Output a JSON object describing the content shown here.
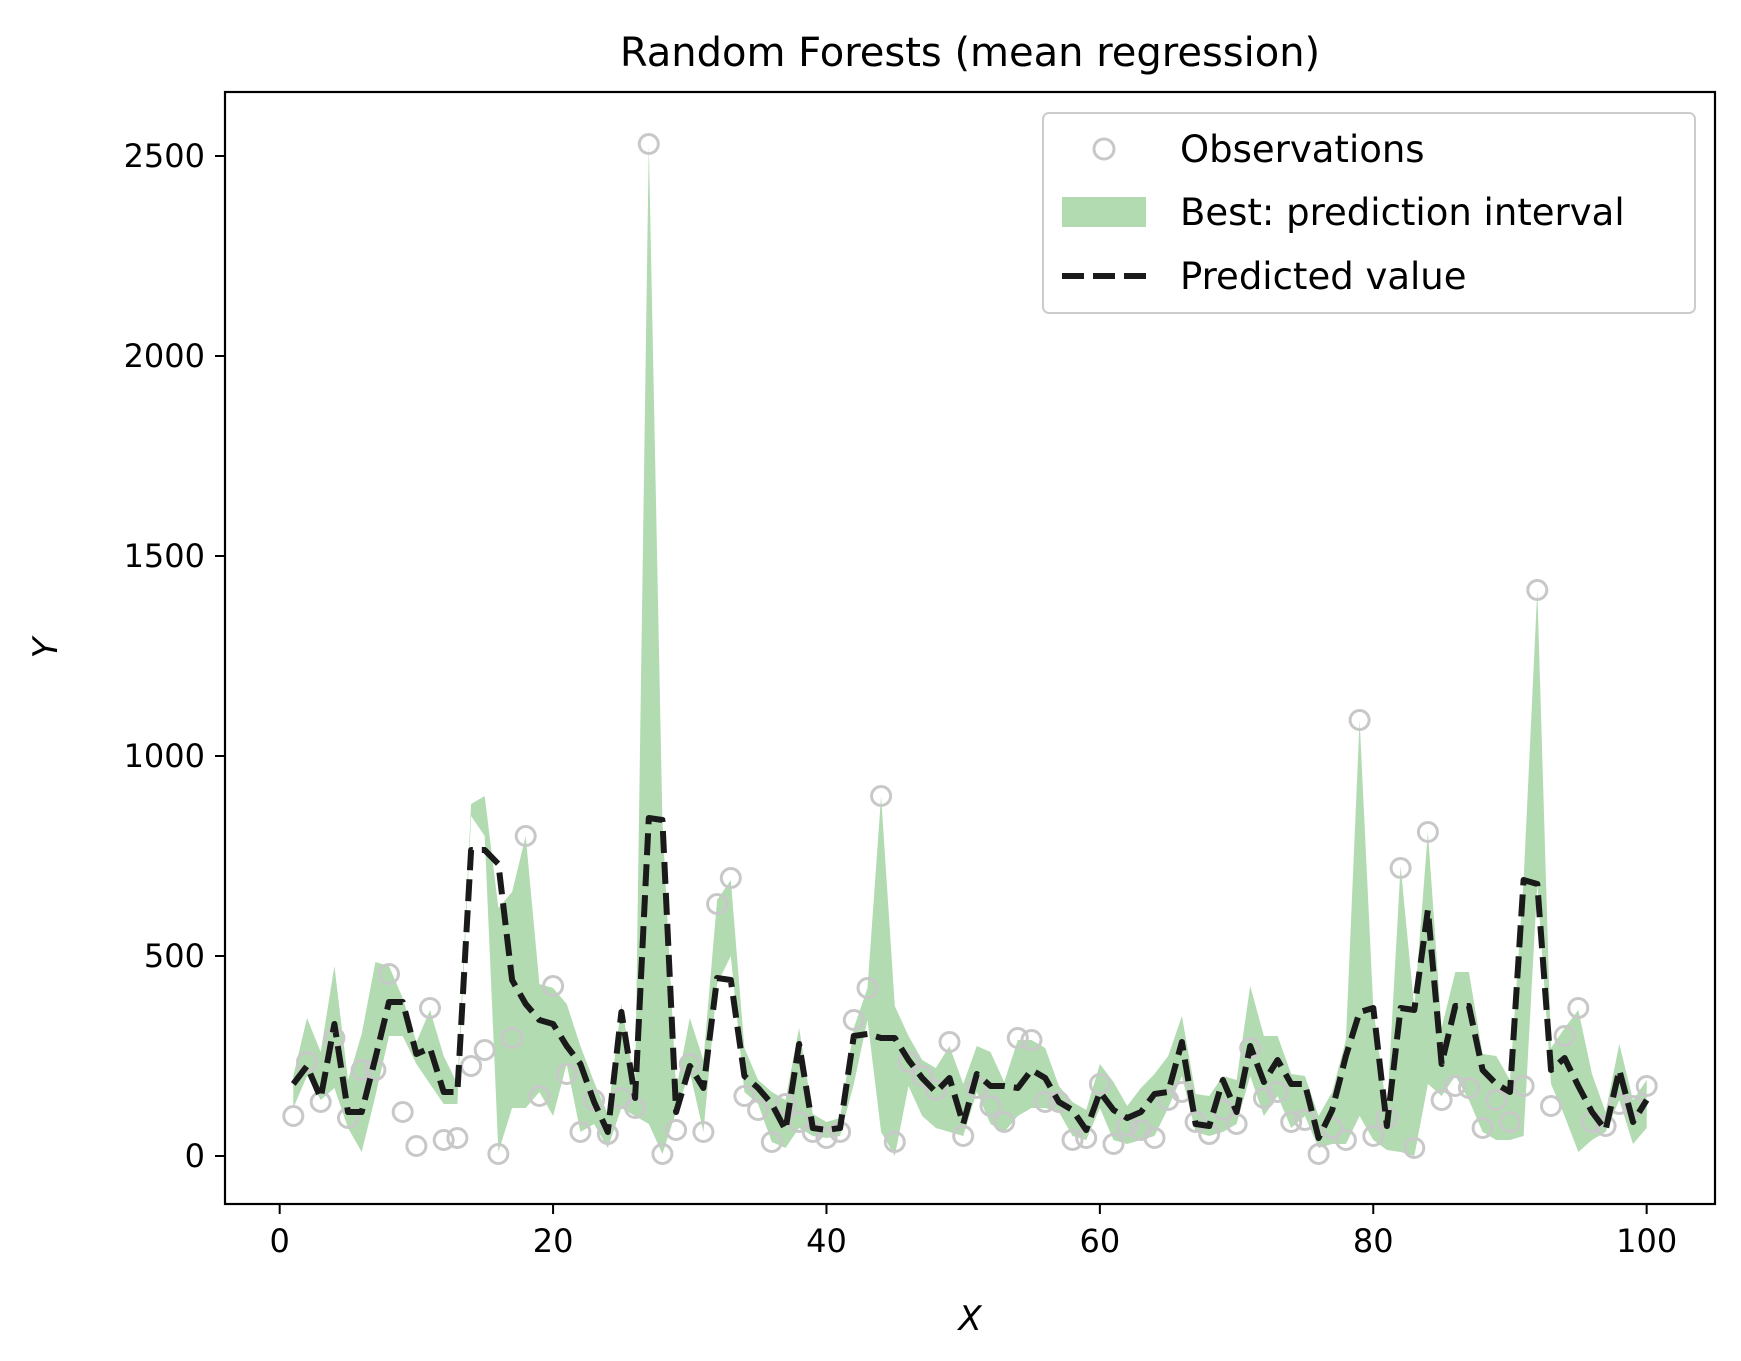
{
  "chart_data": {
    "type": "line",
    "title": "Random Forests (mean regression)",
    "xlabel": "X",
    "ylabel": "Y",
    "xlim": [
      -4,
      105
    ],
    "ylim": [
      -120,
      2660
    ],
    "xticks": [
      0,
      20,
      40,
      60,
      80,
      100
    ],
    "yticks": [
      0,
      500,
      1000,
      1500,
      2000,
      2500
    ],
    "grid": false,
    "legend_position": "top-right",
    "colors": {
      "observations": "#c8c8c8",
      "interval": "#b2dbb2",
      "prediction": "#1a1a1a",
      "frame": "#000000"
    },
    "legend": [
      {
        "key": "observations",
        "label": "Observations"
      },
      {
        "key": "interval",
        "label": "Best: prediction interval"
      },
      {
        "key": "prediction",
        "label": "Predicted value"
      }
    ],
    "x": [
      1,
      2,
      3,
      4,
      5,
      6,
      7,
      8,
      9,
      10,
      11,
      12,
      13,
      14,
      15,
      16,
      17,
      18,
      19,
      20,
      21,
      22,
      23,
      24,
      25,
      26,
      27,
      28,
      29,
      30,
      31,
      32,
      33,
      34,
      35,
      36,
      37,
      38,
      39,
      40,
      41,
      42,
      43,
      44,
      45,
      46,
      47,
      48,
      49,
      50,
      51,
      52,
      53,
      54,
      55,
      56,
      57,
      58,
      59,
      60,
      61,
      62,
      63,
      64,
      65,
      66,
      67,
      68,
      69,
      70,
      71,
      72,
      73,
      74,
      75,
      76,
      77,
      78,
      79,
      80,
      81,
      82,
      83,
      84,
      85,
      86,
      87,
      88,
      89,
      90,
      91,
      92,
      93,
      94,
      95,
      96,
      97,
      98,
      99,
      100
    ],
    "series": [
      {
        "key": "observations",
        "name": "Observations",
        "values": [
          100,
          235,
          135,
          295,
          95,
          215,
          215,
          455,
          110,
          25,
          370,
          40,
          45,
          225,
          265,
          5,
          295,
          800,
          150,
          425,
          205,
          60,
          140,
          55,
          145,
          120,
          2530,
          5,
          65,
          230,
          60,
          630,
          695,
          150,
          115,
          35,
          130,
          85,
          60,
          45,
          60,
          340,
          420,
          900,
          35,
          235,
          200,
          165,
          285,
          50,
          170,
          125,
          85,
          295,
          290,
          135,
          135,
          40,
          45,
          180,
          30,
          75,
          65,
          45,
          140,
          160,
          85,
          55,
          115,
          80,
          270,
          145,
          160,
          85,
          90,
          5,
          70,
          40,
          1090,
          50,
          95,
          720,
          20,
          810,
          140,
          175,
          170,
          70,
          140,
          85,
          175,
          1415,
          125,
          300,
          370,
          85,
          75,
          130,
          125,
          175
        ]
      },
      {
        "key": "prediction",
        "name": "Predicted value",
        "values": [
          180,
          225,
          145,
          330,
          110,
          110,
          245,
          385,
          385,
          255,
          270,
          160,
          160,
          765,
          765,
          730,
          440,
          380,
          340,
          330,
          275,
          230,
          135,
          60,
          360,
          145,
          845,
          840,
          110,
          225,
          170,
          445,
          440,
          200,
          170,
          130,
          65,
          280,
          70,
          65,
          70,
          300,
          305,
          295,
          295,
          240,
          195,
          160,
          195,
          80,
          205,
          175,
          175,
          170,
          215,
          195,
          135,
          115,
          65,
          160,
          115,
          95,
          110,
          155,
          160,
          285,
          80,
          75,
          190,
          110,
          275,
          185,
          240,
          180,
          180,
          45,
          115,
          250,
          360,
          370,
          75,
          370,
          365,
          615,
          230,
          375,
          375,
          215,
          180,
          160,
          690,
          680,
          215,
          245,
          175,
          110,
          65,
          215,
          85,
          140
        ]
      },
      {
        "key": "interval",
        "name": "Best: prediction interval",
        "lower": [
          120,
          200,
          140,
          170,
          70,
          10,
          150,
          300,
          300,
          230,
          180,
          130,
          130,
          850,
          800,
          10,
          120,
          120,
          160,
          100,
          230,
          60,
          80,
          20,
          120,
          100,
          80,
          5,
          110,
          210,
          60,
          430,
          500,
          160,
          130,
          35,
          20,
          70,
          50,
          45,
          50,
          180,
          340,
          60,
          0,
          175,
          100,
          70,
          60,
          50,
          160,
          80,
          60,
          100,
          120,
          120,
          110,
          50,
          40,
          120,
          40,
          30,
          40,
          50,
          120,
          200,
          60,
          50,
          60,
          80,
          200,
          100,
          150,
          70,
          100,
          20,
          30,
          30,
          100,
          40,
          15,
          10,
          0,
          180,
          150,
          200,
          140,
          60,
          40,
          40,
          50,
          680,
          180,
          100,
          10,
          40,
          60,
          140,
          30,
          70
        ],
        "upper": [
          200,
          345,
          260,
          475,
          190,
          305,
          485,
          475,
          395,
          285,
          365,
          250,
          180,
          880,
          900,
          620,
          660,
          800,
          430,
          420,
          380,
          275,
          185,
          105,
          380,
          175,
          2530,
          840,
          165,
          345,
          240,
          640,
          690,
          270,
          190,
          160,
          140,
          320,
          105,
          85,
          95,
          320,
          420,
          900,
          375,
          300,
          240,
          220,
          275,
          180,
          275,
          260,
          185,
          290,
          290,
          270,
          175,
          135,
          115,
          230,
          185,
          125,
          170,
          205,
          250,
          350,
          155,
          150,
          200,
          190,
          425,
          300,
          300,
          205,
          200,
          100,
          160,
          290,
          1090,
          370,
          110,
          725,
          370,
          810,
          320,
          460,
          460,
          255,
          250,
          190,
          690,
          1415,
          270,
          320,
          365,
          205,
          110,
          280,
          140,
          190
        ]
      }
    ]
  }
}
